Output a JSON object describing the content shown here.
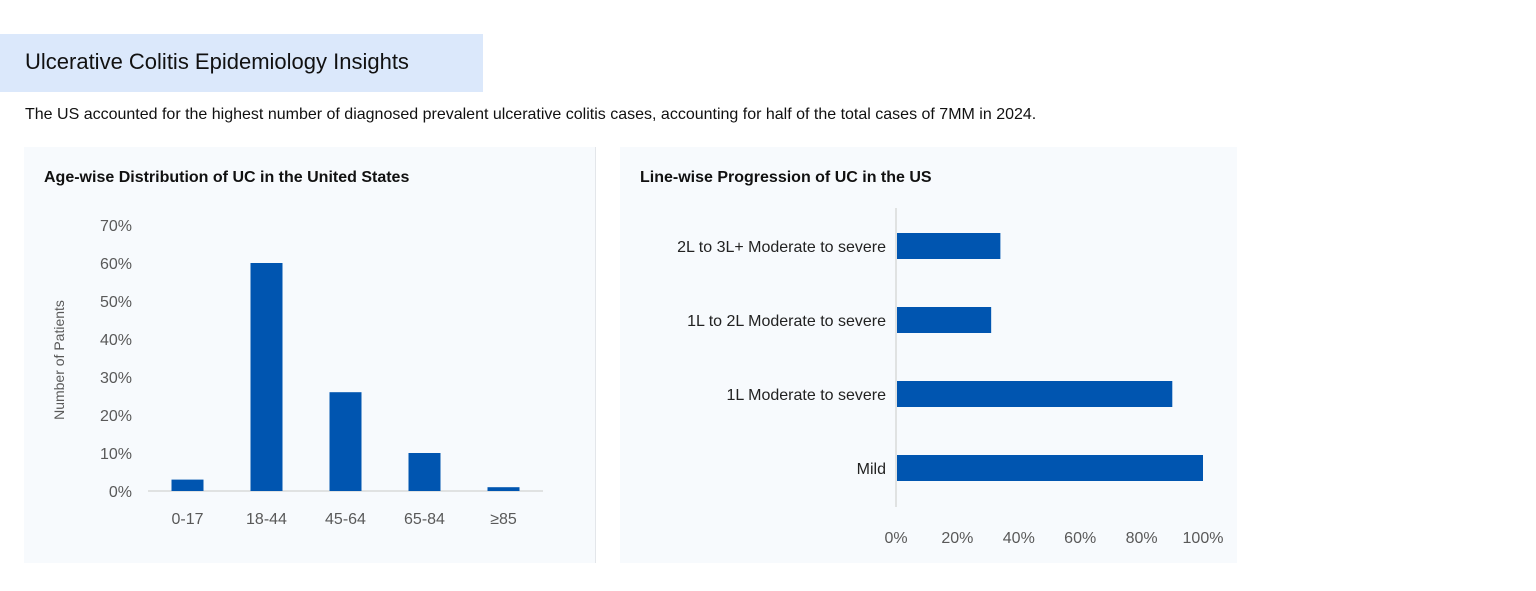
{
  "header": {
    "title": "Ulcerative Colitis Epidemiology Insights"
  },
  "subtitle": "The US accounted for the highest number of diagnosed prevalent ulcerative colitis cases, accounting for half of the total cases of 7MM in 2024.",
  "colors": {
    "bar": "#0055b0",
    "header_bg": "#dbe8fb",
    "panel_bg": "#f7fafd"
  },
  "chart_data": [
    {
      "type": "bar",
      "title": "Age-wise Distribution of UC in the United States",
      "xlabel": "",
      "ylabel": "Number of Patients",
      "categories": [
        "0-17",
        "18-44",
        "45-64",
        "65-84",
        "≥85"
      ],
      "values": [
        3,
        60,
        26,
        10,
        1
      ],
      "ylim": [
        0,
        70
      ],
      "yticks": [
        "0%",
        "10%",
        "20%",
        "30%",
        "40%",
        "50%",
        "60%",
        "70%"
      ],
      "grid": false
    },
    {
      "type": "bar",
      "orientation": "horizontal",
      "title": "Line-wise Progression of UC in the US",
      "categories": [
        "2L to 3L+ Moderate to severe",
        "1L to 2L Moderate to severe",
        "1L Moderate to severe",
        "Mild"
      ],
      "values": [
        34,
        31,
        90,
        100
      ],
      "xlim": [
        0,
        100
      ],
      "xticks": [
        "0%",
        "20%",
        "40%",
        "60%",
        "80%",
        "100%"
      ],
      "grid": false
    }
  ]
}
